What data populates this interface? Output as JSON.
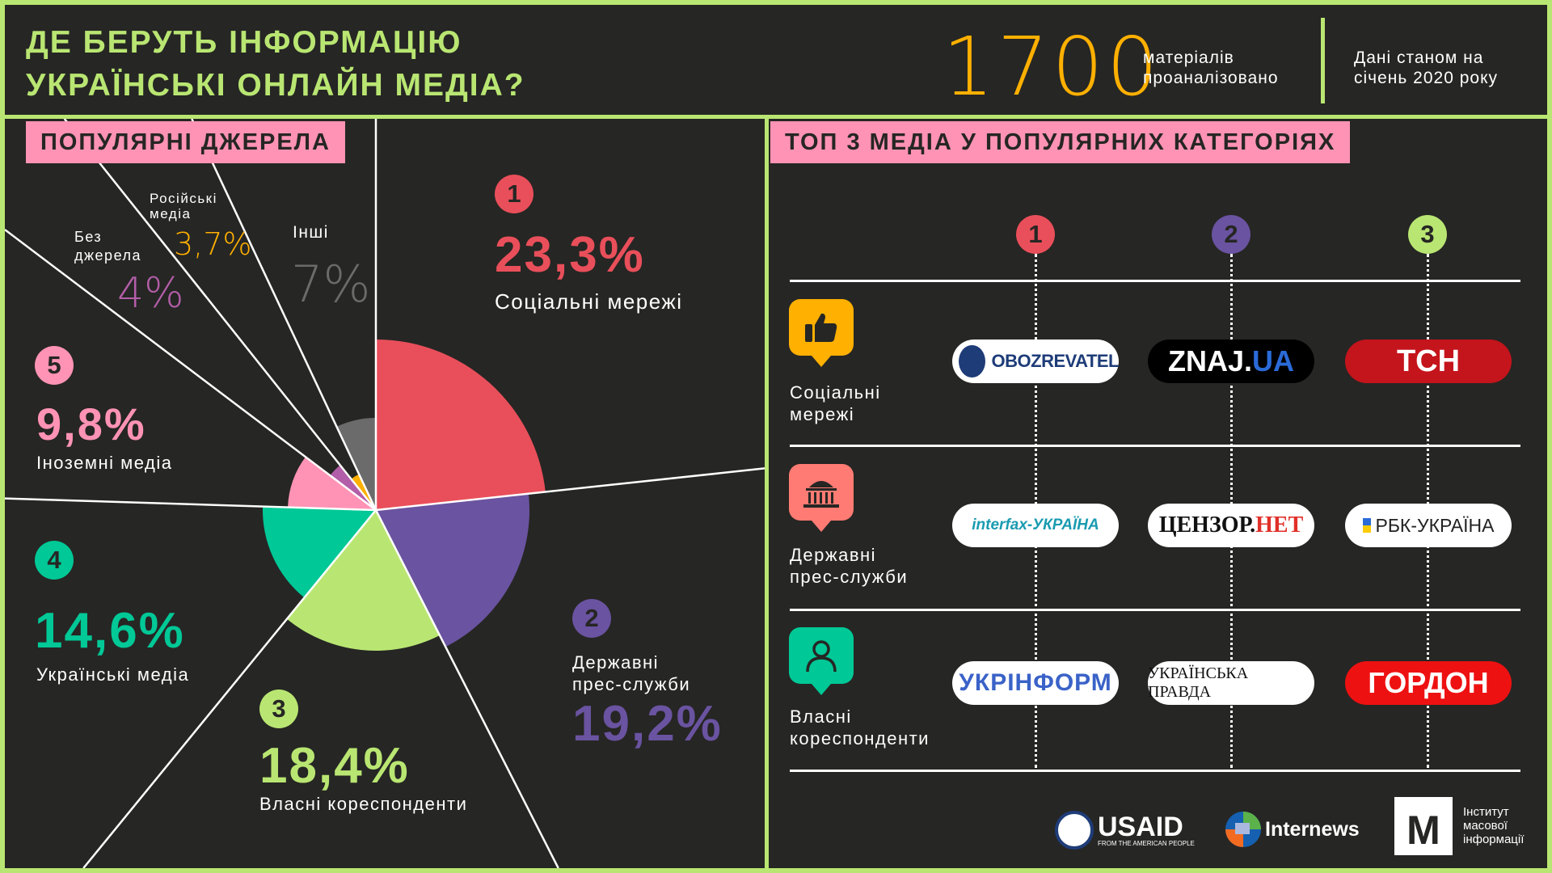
{
  "header": {
    "title_line1": "ДЕ БЕРУТЬ ІНФОРМАЦІЮ",
    "title_line2": "УКРАЇНСЬКІ ОНЛАЙН МЕДІА?",
    "count": "1700",
    "count_label1": "матеріалів",
    "count_label2": "проаналізовано",
    "date_label1": "Дані станом на",
    "date_label2": "січень 2020 року"
  },
  "left": {
    "section_title": "ПОПУЛЯРНІ ДЖЕРЕЛА"
  },
  "right": {
    "section_title": "ТОП 3 МЕДІА У ПОПУЛЯРНИХ КАТЕГОРІЯХ",
    "ranks": [
      "1",
      "2",
      "3"
    ],
    "rows": [
      {
        "label1": "Соціальні",
        "label2": "мережі",
        "icon": "thumbs-up-icon",
        "logos": [
          "OBOZREVATEL",
          "ZNAJ.",
          "UA",
          "ТСН"
        ]
      },
      {
        "label1": "Державні",
        "label2": "прес-служби",
        "icon": "government-building-icon",
        "logos": [
          "interfax-УКРАЇНА",
          "ЦЕНЗОР.",
          "НЕТ",
          "РБК-УКРАЇНА"
        ]
      },
      {
        "label1": "Власні",
        "label2": "кореспонденти",
        "icon": "person-icon",
        "logos": [
          "УКРІНФОРМ",
          "УКРАЇНСЬКА ПРАВДА",
          "ГОРДОН"
        ]
      }
    ]
  },
  "footer": {
    "usaid": "USAID",
    "usaid_sub": "FROM THE AMERICAN PEOPLE",
    "internews": "Internews",
    "imi1": "Інститут",
    "imi2": "масової",
    "imi3": "інформації",
    "imi_logo": "М"
  },
  "chart_data": {
    "type": "pie",
    "title": "ПОПУЛЯРНІ ДЖЕРЕЛА",
    "slices": [
      {
        "rank": "1",
        "label": "Соціальні мережі",
        "value": 23.3,
        "display": "23,3%",
        "color": "#e94f5a"
      },
      {
        "rank": "2",
        "label": "Державні прес-служби",
        "label1": "Державні",
        "label2": "прес-служби",
        "value": 19.2,
        "display": "19,2%",
        "color": "#6a53a0"
      },
      {
        "rank": "3",
        "label": "Власні кореспонденти",
        "value": 18.4,
        "display": "18,4%",
        "color": "#b9e672"
      },
      {
        "rank": "4",
        "label": "Українські медіа",
        "value": 14.6,
        "display": "14,6%",
        "color": "#00c896"
      },
      {
        "rank": "5",
        "label": "Іноземні медіа",
        "value": 9.8,
        "display": "9,8%",
        "color": "#ff93b5"
      },
      {
        "label": "Без джерела",
        "label1": "Без",
        "label2": "джерела",
        "value": 4,
        "display": "4%",
        "color": "#b35ea8"
      },
      {
        "label": "Російські медіа",
        "label1": "Російські",
        "label2": "медіа",
        "value": 3.7,
        "display": "3,7%",
        "color": "#ffb000"
      },
      {
        "label": "Інші",
        "value": 7,
        "display": "7%",
        "color": "#6b6b6b"
      }
    ]
  }
}
